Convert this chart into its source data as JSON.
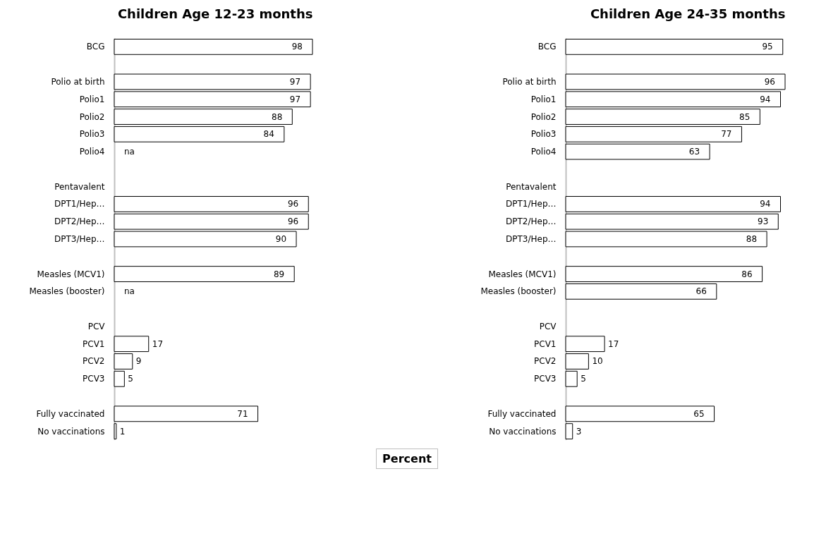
{
  "chart_data": [
    {
      "type": "bar",
      "orientation": "horizontal",
      "title": "Children Age 12-23 months",
      "color": "#ffffff",
      "categories": [
        "BCG",
        null,
        "Polio at birth",
        "Polio1",
        "Polio2",
        "Polio3",
        "Polio4",
        null,
        "Pentavalent",
        "DPT1/Hep…",
        "DPT2/Hep…",
        "DPT3/Hep…",
        null,
        "Measles (MCV1)",
        "Measles (booster)",
        null,
        "PCV",
        "PCV1",
        "PCV2",
        "PCV3",
        null,
        "Fully vaccinated",
        "No vaccinations"
      ],
      "values": [
        98,
        null,
        97,
        97,
        88,
        84,
        null,
        null,
        null,
        96,
        96,
        90,
        null,
        89,
        null,
        null,
        null,
        17,
        9,
        5,
        null,
        71,
        1
      ],
      "value_labels": [
        "98",
        null,
        "97",
        "97",
        "88",
        "84",
        "na",
        null,
        null,
        "96",
        "96",
        "90",
        null,
        "89",
        "na",
        null,
        null,
        "17",
        "9",
        "5",
        null,
        "71",
        "1"
      ],
      "annotations": [
        "Percent"
      ]
    },
    {
      "type": "bar",
      "orientation": "horizontal",
      "title": "Children Age 24-35 months",
      "color": "#ffffff",
      "categories": [
        "BCG",
        null,
        "Polio at birth",
        "Polio1",
        "Polio2",
        "Polio3",
        "Polio4",
        null,
        "Pentavalent",
        "DPT1/Hep…",
        "DPT2/Hep…",
        "DPT3/Hep…",
        null,
        "Measles (MCV1)",
        "Measles (booster)",
        null,
        "PCV",
        "PCV1",
        "PCV2",
        "PCV3",
        null,
        "Fully vaccinated",
        "No vaccinations"
      ],
      "values": [
        95,
        null,
        96,
        94,
        85,
        77,
        63,
        null,
        null,
        94,
        93,
        88,
        null,
        86,
        66,
        null,
        null,
        17,
        10,
        5,
        null,
        65,
        3
      ],
      "value_labels": [
        "95",
        null,
        "96",
        "94",
        "85",
        "77",
        "63",
        null,
        null,
        "94",
        "93",
        "88",
        null,
        "86",
        "66",
        null,
        null,
        "17",
        "10",
        "5",
        null,
        "65",
        "3"
      ]
    }
  ]
}
